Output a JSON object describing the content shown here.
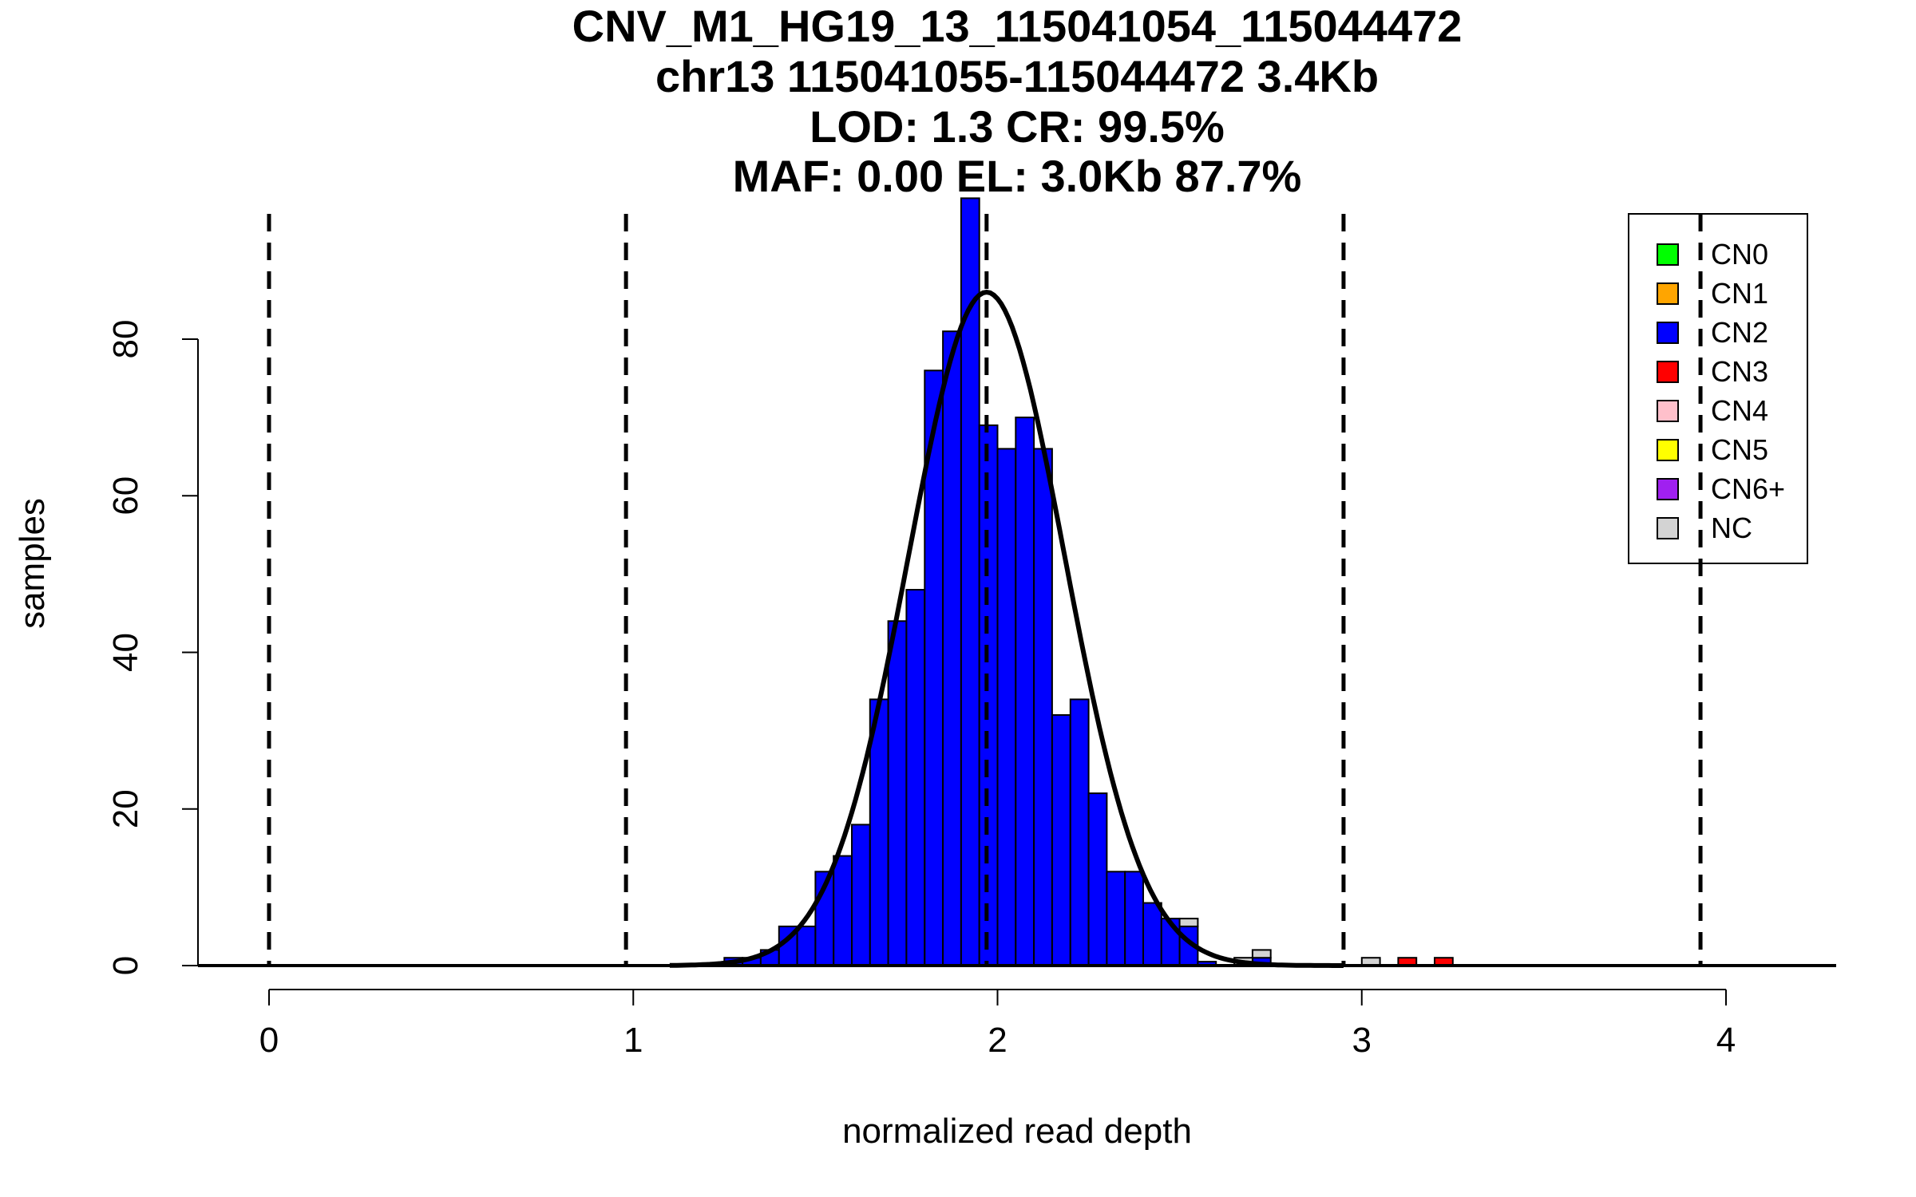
{
  "chart_data": {
    "type": "bar",
    "title_lines": [
      "CNV_M1_HG19_13_115041054_115044472",
      "chr13 115041055-115044472 3.4Kb",
      "LOD: 1.3 CR: 99.5%",
      "MAF: 0.00 EL: 3.0Kb 87.7%"
    ],
    "xlabel": "normalized read depth",
    "ylabel": "samples",
    "xlim": [
      -0.2,
      4.3
    ],
    "ylim": [
      0,
      98
    ],
    "xticks": [
      "0",
      "1",
      "2",
      "3",
      "4"
    ],
    "yticks": [
      "0",
      "20",
      "40",
      "60",
      "80"
    ],
    "bin_width": 0.05,
    "series": [
      {
        "name": "CN2",
        "bins": [
          {
            "x0": 1.25,
            "value": 1
          },
          {
            "x0": 1.3,
            "value": 1
          },
          {
            "x0": 1.35,
            "value": 2
          },
          {
            "x0": 1.4,
            "value": 5
          },
          {
            "x0": 1.45,
            "value": 5
          },
          {
            "x0": 1.5,
            "value": 12
          },
          {
            "x0": 1.55,
            "value": 14
          },
          {
            "x0": 1.6,
            "value": 18
          },
          {
            "x0": 1.65,
            "value": 34
          },
          {
            "x0": 1.7,
            "value": 44
          },
          {
            "x0": 1.75,
            "value": 48
          },
          {
            "x0": 1.8,
            "value": 76
          },
          {
            "x0": 1.85,
            "value": 81
          },
          {
            "x0": 1.9,
            "value": 98
          },
          {
            "x0": 1.95,
            "value": 69
          },
          {
            "x0": 2.0,
            "value": 66
          },
          {
            "x0": 2.05,
            "value": 70
          },
          {
            "x0": 2.1,
            "value": 66
          },
          {
            "x0": 2.15,
            "value": 32
          },
          {
            "x0": 2.2,
            "value": 34
          },
          {
            "x0": 2.25,
            "value": 22
          },
          {
            "x0": 2.3,
            "value": 12
          },
          {
            "x0": 2.35,
            "value": 12
          },
          {
            "x0": 2.4,
            "value": 8
          },
          {
            "x0": 2.45,
            "value": 6
          },
          {
            "x0": 2.5,
            "value": 5
          },
          {
            "x0": 2.55,
            "value": 0.5
          },
          {
            "x0": 2.7,
            "value": 1
          }
        ]
      },
      {
        "name": "NC",
        "bins": [
          {
            "x0": 2.5,
            "value": 1,
            "base": 5
          },
          {
            "x0": 2.65,
            "value": 1
          },
          {
            "x0": 2.7,
            "value": 1,
            "base": 1
          },
          {
            "x0": 3.0,
            "value": 1
          }
        ]
      },
      {
        "name": "CN3",
        "bins": [
          {
            "x0": 3.1,
            "value": 1
          },
          {
            "x0": 3.2,
            "value": 1
          }
        ]
      }
    ],
    "vlines": [
      0.0,
      0.98,
      1.97,
      2.95,
      3.93
    ],
    "fit_curve": {
      "mean": 1.97,
      "sd": 0.215,
      "peak": 86
    },
    "legend": {
      "position": "top-right",
      "items": [
        {
          "label": "CN0",
          "color": "#00ff00"
        },
        {
          "label": "CN1",
          "color": "#ffa500"
        },
        {
          "label": "CN2",
          "color": "#0000ff"
        },
        {
          "label": "CN3",
          "color": "#ff0000"
        },
        {
          "label": "CN4",
          "color": "#ffc0cb"
        },
        {
          "label": "CN5",
          "color": "#ffff00"
        },
        {
          "label": "CN6+",
          "color": "#a020f0"
        },
        {
          "label": "NC",
          "color": "#d3d3d3"
        }
      ]
    }
  }
}
